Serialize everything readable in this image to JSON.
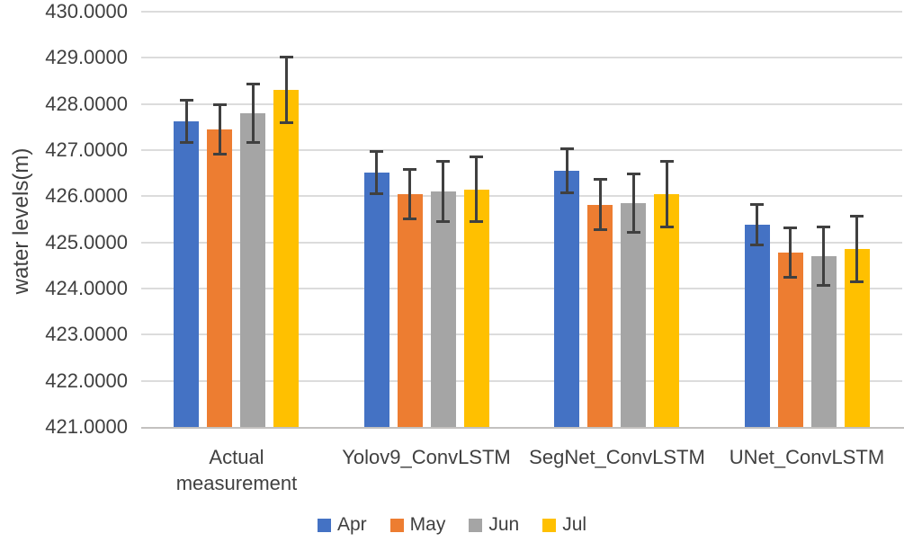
{
  "chart_data": {
    "type": "bar",
    "title": "",
    "xlabel": "",
    "ylabel": "water levels(m)",
    "ylim": [
      421,
      430
    ],
    "ytick_step": 1,
    "ytick_labels": [
      "430.0000",
      "429.0000",
      "428.0000",
      "427.0000",
      "426.0000",
      "425.0000",
      "424.0000",
      "423.0000",
      "422.0000",
      "421.0000"
    ],
    "grid": true,
    "legend_position": "bottom",
    "categories": [
      "Actual measurement",
      "Yolov9_ConvLSTM",
      "SegNet_ConvLSTM",
      "UNet_ConvLSTM"
    ],
    "category_lines": [
      [
        "Actual",
        "measurement"
      ],
      [
        "Yolov9_ConvLSTM"
      ],
      [
        "SegNet_ConvLSTM"
      ],
      [
        "UNet_ConvLSTM"
      ]
    ],
    "series": [
      {
        "name": "Apr",
        "color": "#4472C4",
        "values": [
          427.62,
          426.52,
          426.55,
          425.38
        ],
        "errors": [
          0.47,
          0.47,
          0.48,
          0.45
        ]
      },
      {
        "name": "May",
        "color": "#ED7D31",
        "values": [
          427.45,
          426.05,
          425.82,
          424.78
        ],
        "errors": [
          0.55,
          0.55,
          0.56,
          0.55
        ]
      },
      {
        "name": "Jun",
        "color": "#A5A5A5",
        "values": [
          427.8,
          426.1,
          425.85,
          424.7
        ],
        "errors": [
          0.65,
          0.66,
          0.65,
          0.64
        ]
      },
      {
        "name": "Jul",
        "color": "#FFC000",
        "values": [
          428.3,
          426.15,
          426.05,
          424.85
        ],
        "errors": [
          0.72,
          0.71,
          0.72,
          0.72
        ]
      }
    ],
    "error_bars": true
  },
  "style": {
    "gridline_color": "#dcdcdc",
    "axis_line_color": "#c3c1bf",
    "error_bar_color": "#404040",
    "text_color": "#404040",
    "background": "#ffffff"
  }
}
